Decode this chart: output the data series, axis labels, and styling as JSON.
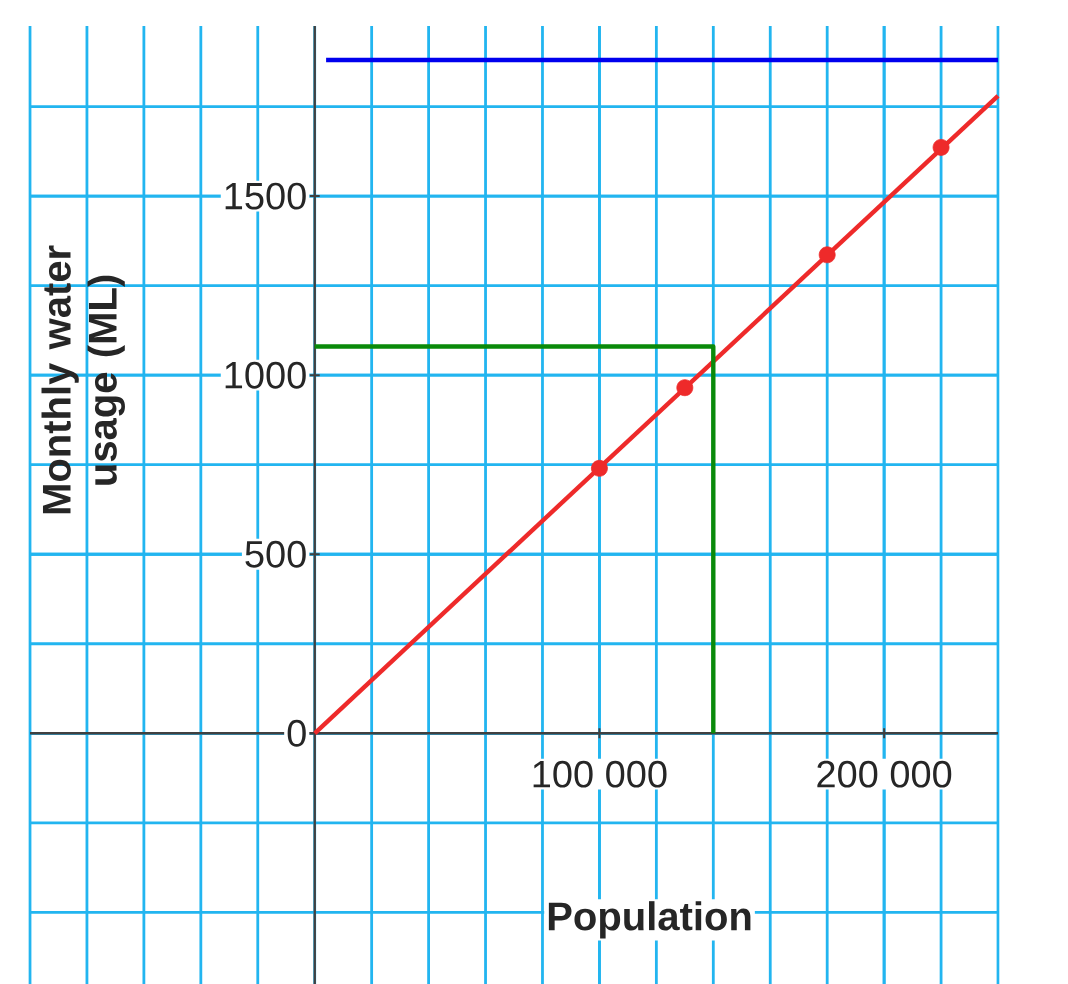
{
  "chart_data": {
    "type": "line",
    "xlabel": "Population",
    "ylabel": "Monthly water usage (ML)",
    "xlim": [
      -100000,
      240000
    ],
    "ylim": [
      -700,
      1975
    ],
    "xticks": [
      {
        "value": 100000,
        "label": "100 000"
      },
      {
        "value": 200000,
        "label": "200 000"
      }
    ],
    "yticks": [
      0,
      500,
      1000,
      1500
    ],
    "grid": true,
    "series": [
      {
        "color": "#ee2a2a",
        "x": [
          0,
          240000
        ],
        "values": [
          0,
          1780
        ],
        "line_style": "solid"
      },
      {
        "type": "scatter",
        "color": "#ee2a2a",
        "x": [
          100000,
          130000,
          180000,
          220000
        ],
        "values": [
          740,
          965,
          1336,
          1636
        ]
      },
      {
        "color": "#0a8a0a",
        "x": [
          0,
          140000,
          140000
        ],
        "values": [
          1080,
          1080,
          0
        ],
        "line_style": "solid"
      },
      {
        "color": "#0000ee",
        "x": [
          4000,
          240000
        ],
        "values": [
          1880,
          1880
        ],
        "line_style": "solid"
      }
    ]
  }
}
